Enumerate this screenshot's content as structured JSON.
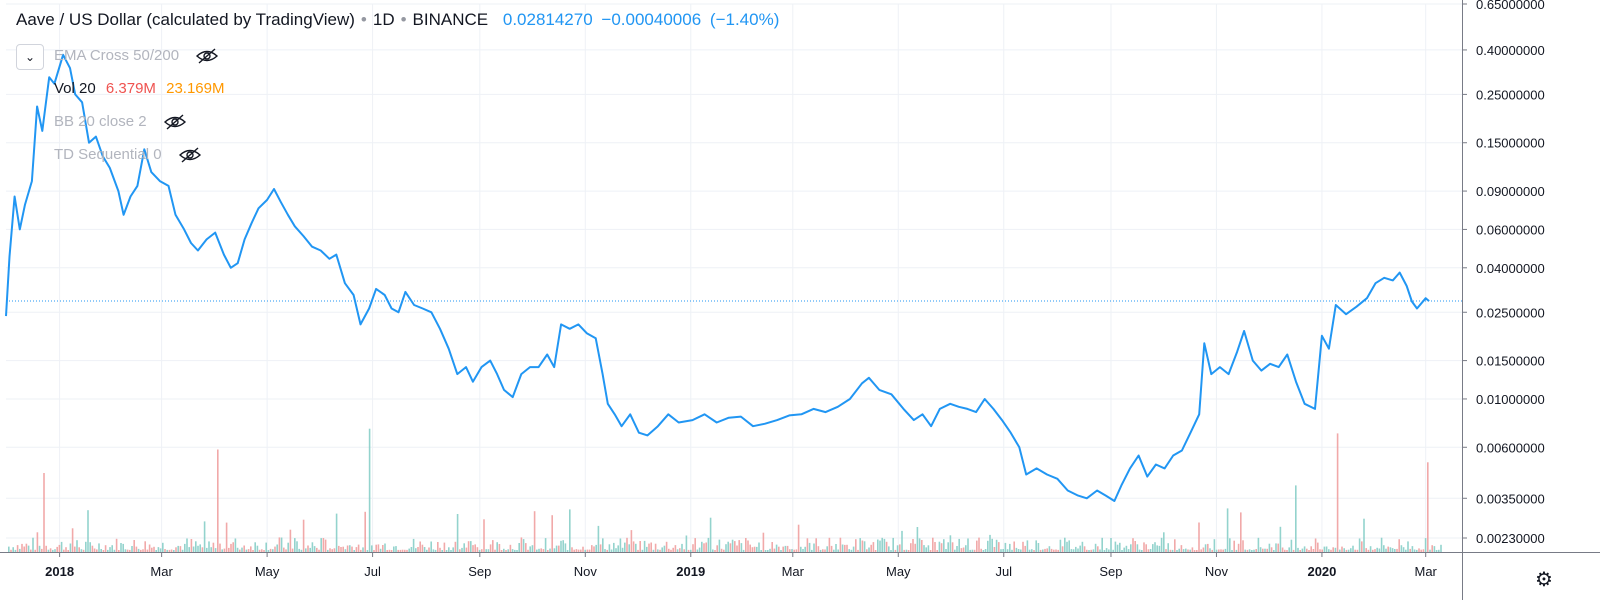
{
  "header": {
    "title": "Aave / US Dollar (calculated by TradingView)",
    "interval": "1D",
    "exchange": "BINANCE",
    "last": "0.02814270",
    "change": "−0.00040006",
    "change_pct": "(−1.40%)"
  },
  "indicators": [
    {
      "label": "EMA Cross 50/200",
      "hidden": true
    },
    {
      "label": "Vol 20",
      "v1": "6.379M",
      "v2": "23.169M",
      "hidden": false
    },
    {
      "label": "BB 20 close 2",
      "hidden": true
    },
    {
      "label": "TD Sequential 0",
      "hidden": true
    }
  ],
  "colors": {
    "line": "#2196f3",
    "vol_up": "#80cbc4",
    "vol_down": "#ef9a9a",
    "vol_value1": "#ef5350",
    "vol_value2": "#ff9800",
    "grid": "#eef1f6",
    "axis_text": "#131722"
  },
  "icons": {
    "collapse": "chevron-down-icon",
    "hidden_eye": "eye-off-icon",
    "settings": "gear-icon"
  },
  "chart_data": {
    "type": "line",
    "scale": "log",
    "grid": true,
    "y_ticks": [
      0.65,
      0.4,
      0.25,
      0.15,
      0.09,
      0.06,
      0.04,
      0.025,
      0.015,
      0.01,
      0.006,
      0.0035,
      0.0023
    ],
    "y_tick_labels": [
      "0.65000000",
      "0.40000000",
      "0.25000000",
      "0.15000000",
      "0.09000000",
      "0.06000000",
      "0.04000000",
      "0.02500000",
      "0.01500000",
      "0.01000000",
      "0.00600000",
      "0.00350000",
      "0.00230000"
    ],
    "x_tick_labels": [
      {
        "label": "2018",
        "date": "2018-01-01",
        "bold": true
      },
      {
        "label": "Mar",
        "date": "2018-03-01"
      },
      {
        "label": "May",
        "date": "2018-05-01"
      },
      {
        "label": "Jul",
        "date": "2018-07-01"
      },
      {
        "label": "Sep",
        "date": "2018-09-01"
      },
      {
        "label": "Nov",
        "date": "2018-11-01"
      },
      {
        "label": "2019",
        "date": "2019-01-01",
        "bold": true
      },
      {
        "label": "Mar",
        "date": "2019-03-01"
      },
      {
        "label": "May",
        "date": "2019-05-01"
      },
      {
        "label": "Jul",
        "date": "2019-07-01"
      },
      {
        "label": "Sep",
        "date": "2019-09-01"
      },
      {
        "label": "Nov",
        "date": "2019-11-01"
      },
      {
        "label": "2020",
        "date": "2020-01-01",
        "bold": true
      },
      {
        "label": "Mar",
        "date": "2020-03-01"
      }
    ],
    "x_range": [
      "2017-12-01",
      "2020-03-22"
    ],
    "price_line": 0.0281427,
    "series": [
      {
        "points": [
          [
            "2017-12-01",
            0.024
          ],
          [
            "2017-12-03",
            0.045
          ],
          [
            "2017-12-06",
            0.085
          ],
          [
            "2017-12-09",
            0.06
          ],
          [
            "2017-12-12",
            0.078
          ],
          [
            "2017-12-16",
            0.1
          ],
          [
            "2017-12-19",
            0.22
          ],
          [
            "2017-12-22",
            0.17
          ],
          [
            "2017-12-26",
            0.3
          ],
          [
            "2017-12-29",
            0.28
          ],
          [
            "2018-01-03",
            0.38
          ],
          [
            "2018-01-07",
            0.33
          ],
          [
            "2018-01-10",
            0.25
          ],
          [
            "2018-01-14",
            0.23
          ],
          [
            "2018-01-18",
            0.15
          ],
          [
            "2018-01-22",
            0.16
          ],
          [
            "2018-01-26",
            0.13
          ],
          [
            "2018-01-30",
            0.115
          ],
          [
            "2018-02-04",
            0.09
          ],
          [
            "2018-02-07",
            0.07
          ],
          [
            "2018-02-11",
            0.085
          ],
          [
            "2018-02-15",
            0.095
          ],
          [
            "2018-02-19",
            0.14
          ],
          [
            "2018-02-23",
            0.11
          ],
          [
            "2018-02-28",
            0.1
          ],
          [
            "2018-03-05",
            0.095
          ],
          [
            "2018-03-09",
            0.07
          ],
          [
            "2018-03-14",
            0.06
          ],
          [
            "2018-03-18",
            0.052
          ],
          [
            "2018-03-22",
            0.048
          ],
          [
            "2018-03-27",
            0.054
          ],
          [
            "2018-04-01",
            0.058
          ],
          [
            "2018-04-06",
            0.046
          ],
          [
            "2018-04-10",
            0.04
          ],
          [
            "2018-04-14",
            0.042
          ],
          [
            "2018-04-18",
            0.054
          ],
          [
            "2018-04-22",
            0.064
          ],
          [
            "2018-04-26",
            0.075
          ],
          [
            "2018-05-01",
            0.082
          ],
          [
            "2018-05-05",
            0.092
          ],
          [
            "2018-05-09",
            0.08
          ],
          [
            "2018-05-13",
            0.07
          ],
          [
            "2018-05-17",
            0.062
          ],
          [
            "2018-05-22",
            0.056
          ],
          [
            "2018-05-27",
            0.05
          ],
          [
            "2018-06-01",
            0.048
          ],
          [
            "2018-06-06",
            0.044
          ],
          [
            "2018-06-10",
            0.046
          ],
          [
            "2018-06-15",
            0.034
          ],
          [
            "2018-06-20",
            0.03
          ],
          [
            "2018-06-24",
            0.022
          ],
          [
            "2018-06-29",
            0.026
          ],
          [
            "2018-07-03",
            0.032
          ],
          [
            "2018-07-08",
            0.03
          ],
          [
            "2018-07-12",
            0.026
          ],
          [
            "2018-07-16",
            0.025
          ],
          [
            "2018-07-20",
            0.031
          ],
          [
            "2018-07-25",
            0.027
          ],
          [
            "2018-07-30",
            0.026
          ],
          [
            "2018-08-04",
            0.025
          ],
          [
            "2018-08-09",
            0.021
          ],
          [
            "2018-08-14",
            0.017
          ],
          [
            "2018-08-19",
            0.013
          ],
          [
            "2018-08-24",
            0.014
          ],
          [
            "2018-08-28",
            0.012
          ],
          [
            "2018-09-02",
            0.014
          ],
          [
            "2018-09-07",
            0.015
          ],
          [
            "2018-09-11",
            0.013
          ],
          [
            "2018-09-15",
            0.011
          ],
          [
            "2018-09-20",
            0.0102
          ],
          [
            "2018-09-25",
            0.013
          ],
          [
            "2018-09-30",
            0.014
          ],
          [
            "2018-10-05",
            0.014
          ],
          [
            "2018-10-10",
            0.016
          ],
          [
            "2018-10-14",
            0.014
          ],
          [
            "2018-10-18",
            0.022
          ],
          [
            "2018-10-23",
            0.021
          ],
          [
            "2018-10-28",
            0.022
          ],
          [
            "2018-11-02",
            0.02
          ],
          [
            "2018-11-07",
            0.019
          ],
          [
            "2018-11-11",
            0.013
          ],
          [
            "2018-11-14",
            0.0095
          ],
          [
            "2018-11-18",
            0.0085
          ],
          [
            "2018-11-22",
            0.0075
          ],
          [
            "2018-11-27",
            0.0085
          ],
          [
            "2018-12-02",
            0.007
          ],
          [
            "2018-12-07",
            0.0068
          ],
          [
            "2018-12-13",
            0.0075
          ],
          [
            "2018-12-19",
            0.0085
          ],
          [
            "2018-12-25",
            0.0078
          ],
          [
            "2019-01-02",
            0.008
          ],
          [
            "2019-01-09",
            0.0085
          ],
          [
            "2019-01-16",
            0.0078
          ],
          [
            "2019-01-23",
            0.0082
          ],
          [
            "2019-01-30",
            0.0083
          ],
          [
            "2019-02-06",
            0.0075
          ],
          [
            "2019-02-13",
            0.0077
          ],
          [
            "2019-02-20",
            0.008
          ],
          [
            "2019-02-27",
            0.0084
          ],
          [
            "2019-03-06",
            0.0085
          ],
          [
            "2019-03-13",
            0.009
          ],
          [
            "2019-03-20",
            0.0087
          ],
          [
            "2019-03-27",
            0.0092
          ],
          [
            "2019-04-03",
            0.01
          ],
          [
            "2019-04-10",
            0.0118
          ],
          [
            "2019-04-14",
            0.0125
          ],
          [
            "2019-04-20",
            0.011
          ],
          [
            "2019-04-27",
            0.0105
          ],
          [
            "2019-05-04",
            0.009
          ],
          [
            "2019-05-10",
            0.008
          ],
          [
            "2019-05-15",
            0.0085
          ],
          [
            "2019-05-20",
            0.0075
          ],
          [
            "2019-05-25",
            0.009
          ],
          [
            "2019-05-31",
            0.0095
          ],
          [
            "2019-06-05",
            0.0092
          ],
          [
            "2019-06-10",
            0.009
          ],
          [
            "2019-06-15",
            0.0087
          ],
          [
            "2019-06-20",
            0.01
          ],
          [
            "2019-06-25",
            0.009
          ],
          [
            "2019-06-30",
            0.008
          ],
          [
            "2019-07-05",
            0.007
          ],
          [
            "2019-07-10",
            0.006
          ],
          [
            "2019-07-14",
            0.0045
          ],
          [
            "2019-07-20",
            0.0048
          ],
          [
            "2019-07-26",
            0.0045
          ],
          [
            "2019-08-01",
            0.0043
          ],
          [
            "2019-08-07",
            0.0038
          ],
          [
            "2019-08-13",
            0.0036
          ],
          [
            "2019-08-18",
            0.0035
          ],
          [
            "2019-08-24",
            0.0038
          ],
          [
            "2019-08-29",
            0.0036
          ],
          [
            "2019-09-03",
            0.0034
          ],
          [
            "2019-09-07",
            0.004
          ],
          [
            "2019-09-12",
            0.0048
          ],
          [
            "2019-09-17",
            0.0055
          ],
          [
            "2019-09-22",
            0.0044
          ],
          [
            "2019-09-27",
            0.005
          ],
          [
            "2019-10-02",
            0.0048
          ],
          [
            "2019-10-07",
            0.0055
          ],
          [
            "2019-10-12",
            0.0058
          ],
          [
            "2019-10-17",
            0.007
          ],
          [
            "2019-10-22",
            0.0085
          ],
          [
            "2019-10-25",
            0.018
          ],
          [
            "2019-10-29",
            0.013
          ],
          [
            "2019-11-03",
            0.014
          ],
          [
            "2019-11-08",
            0.013
          ],
          [
            "2019-11-13",
            0.0165
          ],
          [
            "2019-11-17",
            0.0205
          ],
          [
            "2019-11-22",
            0.015
          ],
          [
            "2019-11-27",
            0.0135
          ],
          [
            "2019-12-02",
            0.0145
          ],
          [
            "2019-12-07",
            0.014
          ],
          [
            "2019-12-12",
            0.016
          ],
          [
            "2019-12-17",
            0.012
          ],
          [
            "2019-12-22",
            0.0095
          ],
          [
            "2019-12-28",
            0.009
          ],
          [
            "2020-01-01",
            0.0195
          ],
          [
            "2020-01-05",
            0.017
          ],
          [
            "2020-01-09",
            0.027
          ],
          [
            "2020-01-15",
            0.0245
          ],
          [
            "2020-01-21",
            0.0265
          ],
          [
            "2020-01-27",
            0.029
          ],
          [
            "2020-02-01",
            0.034
          ],
          [
            "2020-02-06",
            0.036
          ],
          [
            "2020-02-11",
            0.035
          ],
          [
            "2020-02-15",
            0.038
          ],
          [
            "2020-02-19",
            0.033
          ],
          [
            "2020-02-22",
            0.028
          ],
          [
            "2020-02-25",
            0.026
          ],
          [
            "2020-03-01",
            0.029
          ],
          [
            "2020-03-03",
            0.02814
          ]
        ]
      }
    ]
  }
}
